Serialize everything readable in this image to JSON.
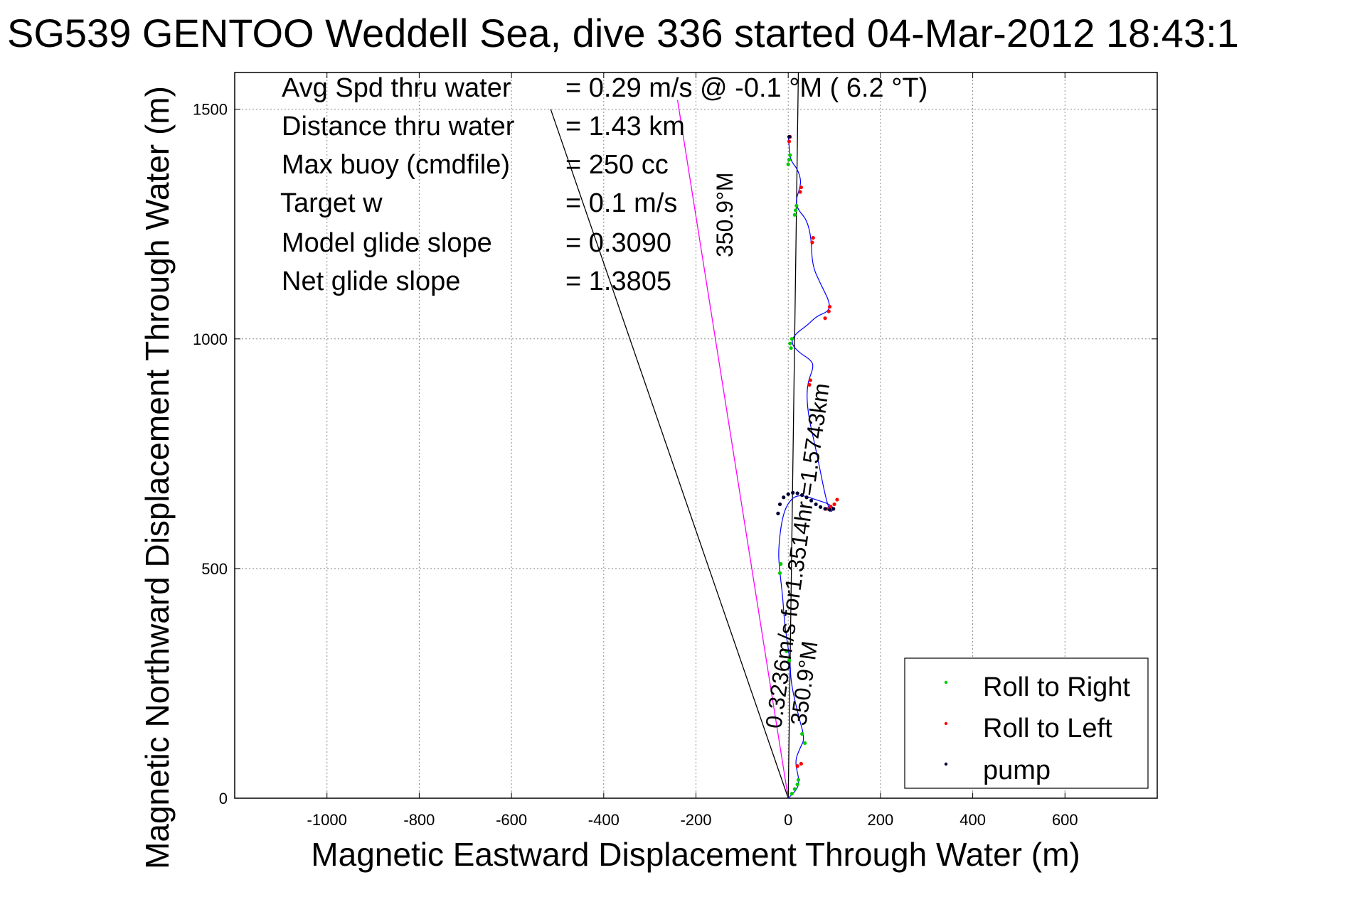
{
  "chart_data": {
    "type": "scatter",
    "title": "SG539 GENTOO Weddell Sea, dive 336 started 04-Mar-2012 18:43:1",
    "xlabel": "Magnetic Eastward Displacement Through Water (m)",
    "ylabel": "Magnetic Northward Displacement Through Water (m)",
    "xlim": [
      -1200,
      800
    ],
    "ylim": [
      0,
      1580
    ],
    "xticks": [
      -1000,
      -800,
      -600,
      -400,
      -200,
      0,
      200,
      400,
      600
    ],
    "yticks": [
      0,
      500,
      1000,
      1500
    ],
    "grid": true,
    "legend_position": "bottom-right",
    "info_lines": [
      {
        "label": "Avg Spd thru water",
        "value": "=  0.29 m/s @  -0.1 °M (  6.2 °T)"
      },
      {
        "label": "Distance thru water",
        "value": "=  1.43 km"
      },
      {
        "label": "Max buoy (cmdfile)",
        "value": "= 250 cc"
      },
      {
        "label": "Target w",
        "value": "= 0.1 m/s"
      },
      {
        "label": "Model glide slope",
        "value": "= 0.3090"
      },
      {
        "label": "Net glide slope",
        "value": "= 1.3805"
      }
    ],
    "annotations": {
      "heading_top": "350.9°M",
      "heading_bottom": "350.9°M",
      "speed_line": "0.3236m/s for1.3514hr =1.5743km"
    },
    "colors": {
      "track": "#0000ff",
      "roll_right": "#00cc00",
      "roll_left": "#ff0000",
      "pump": "#000033",
      "heading_line": "#ff00ff",
      "reference_line": "#000000"
    },
    "reference_lines": [
      {
        "name": "net",
        "x": [
          0,
          -515
        ],
        "y": [
          0,
          1500
        ]
      },
      {
        "name": "heading",
        "x": [
          0,
          -240
        ],
        "y": [
          0,
          1520
        ]
      },
      {
        "name": "north",
        "x": [
          0,
          22
        ],
        "y": [
          0,
          1580
        ]
      }
    ],
    "track": {
      "x": [
        0,
        20,
        24,
        14,
        26,
        36,
        22,
        6,
        4,
        -8,
        -12,
        -18,
        -22,
        -12,
        8,
        30,
        60,
        90,
        100,
        88,
        60,
        42,
        40,
        56,
        48,
        24,
        6,
        14,
        42,
        62,
        88,
        90,
        70,
        52,
        50,
        40,
        22,
        16,
        24,
        28,
        20,
        4,
        2,
        0
      ],
      "y": [
        0,
        20,
        40,
        80,
        110,
        130,
        180,
        250,
        300,
        380,
        440,
        490,
        540,
        620,
        655,
        660,
        650,
        640,
        630,
        620,
        760,
        840,
        900,
        940,
        955,
        970,
        990,
        1010,
        1030,
        1050,
        1060,
        1080,
        1120,
        1160,
        1220,
        1260,
        1280,
        1300,
        1325,
        1345,
        1370,
        1390,
        1420,
        1440
      ]
    },
    "series": [
      {
        "name": "Roll to Right",
        "color": "#00cc00",
        "points": [
          [
            8,
            10
          ],
          [
            14,
            20
          ],
          [
            20,
            30
          ],
          [
            22,
            40
          ],
          [
            36,
            120
          ],
          [
            30,
            140
          ],
          [
            -4,
            320
          ],
          [
            2,
            300
          ],
          [
            -18,
            490
          ],
          [
            -16,
            510
          ],
          [
            6,
            980
          ],
          [
            4,
            990
          ],
          [
            8,
            1000
          ],
          [
            14,
            1270
          ],
          [
            16,
            1280
          ],
          [
            18,
            1290
          ],
          [
            0,
            1380
          ],
          [
            2,
            1390
          ],
          [
            4,
            1400
          ]
        ]
      },
      {
        "name": "Roll to Left",
        "color": "#ff0000",
        "points": [
          [
            20,
            70
          ],
          [
            28,
            75
          ],
          [
            84,
            630
          ],
          [
            92,
            635
          ],
          [
            100,
            640
          ],
          [
            106,
            650
          ],
          [
            46,
            900
          ],
          [
            48,
            910
          ],
          [
            80,
            1045
          ],
          [
            88,
            1060
          ],
          [
            90,
            1070
          ],
          [
            52,
            1210
          ],
          [
            54,
            1220
          ],
          [
            26,
            1320
          ],
          [
            28,
            1330
          ],
          [
            2,
            1430
          ],
          [
            4,
            1440
          ]
        ]
      },
      {
        "name": "pump",
        "color": "#000033",
        "points": [
          [
            -22,
            620
          ],
          [
            -18,
            640
          ],
          [
            -10,
            655
          ],
          [
            0,
            662
          ],
          [
            10,
            665
          ],
          [
            20,
            664
          ],
          [
            30,
            660
          ],
          [
            40,
            655
          ],
          [
            50,
            648
          ],
          [
            60,
            640
          ],
          [
            70,
            634
          ],
          [
            80,
            630
          ],
          [
            90,
            628
          ],
          [
            98,
            630
          ],
          [
            2,
            1440
          ]
        ]
      }
    ]
  }
}
